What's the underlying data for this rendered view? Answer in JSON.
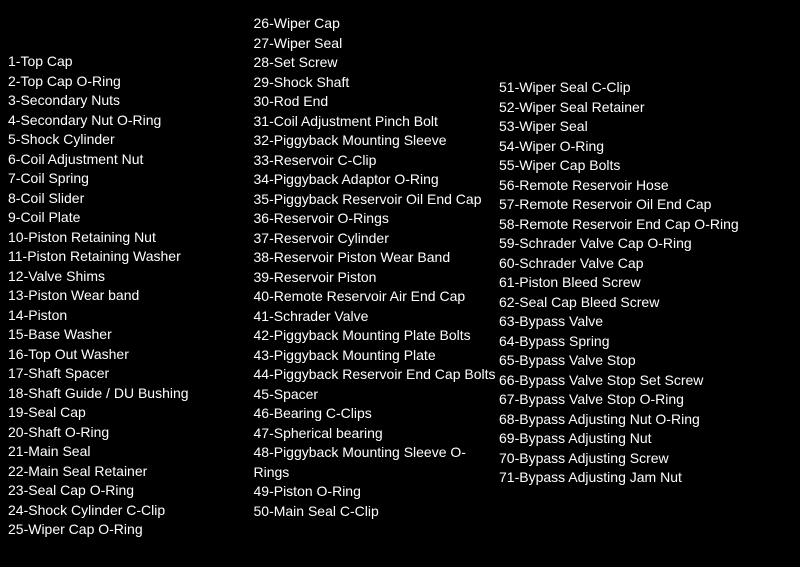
{
  "columns": {
    "col1": [
      "1-Top Cap",
      "2-Top Cap O-Ring",
      "3-Secondary Nuts",
      "4-Secondary Nut O-Ring",
      "5-Shock Cylinder",
      "6-Coil Adjustment Nut",
      "7-Coil Spring",
      "8-Coil Slider",
      "9-Coil Plate",
      "10-Piston Retaining Nut",
      "11-Piston Retaining Washer",
      "12-Valve Shims",
      "13-Piston Wear band",
      "14-Piston",
      "15-Base Washer",
      "16-Top Out Washer",
      "17-Shaft Spacer",
      "18-Shaft Guide / DU Bushing",
      "19-Seal Cap",
      "20-Shaft O-Ring",
      "21-Main Seal",
      "22-Main Seal Retainer",
      "23-Seal Cap O-Ring",
      "24-Shock Cylinder C-Clip",
      "25-Wiper Cap O-Ring"
    ],
    "col2": [
      "26-Wiper Cap",
      "27-Wiper Seal",
      "28-Set Screw",
      "29-Shock Shaft",
      "30-Rod End",
      "31-Coil Adjustment Pinch Bolt",
      "32-Piggyback Mounting Sleeve",
      "33-Reservoir C-Clip",
      "34-Piggyback Adaptor O-Ring",
      "35-Piggyback Reservoir Oil End Cap",
      "36-Reservoir O-Rings",
      "37-Reservoir Cylinder",
      "38-Reservoir Piston Wear Band",
      "39-Reservoir Piston",
      "40-Remote Reservoir Air End Cap",
      "41-Schrader Valve",
      "42-Piggyback Mounting Plate Bolts",
      "43-Piggyback Mounting Plate",
      "44-Piggyback Reservoir End Cap Bolts",
      "45-Spacer",
      "46-Bearing C-Clips",
      "47-Spherical bearing",
      "48-Piggyback Mounting Sleeve O-Rings",
      "49-Piston O-Ring",
      "50-Main Seal C-Clip"
    ],
    "col3": [
      "51-Wiper Seal C-Clip",
      "52-Wiper Seal Retainer",
      "53-Wiper Seal",
      "54-Wiper O-Ring",
      "55-Wiper Cap Bolts",
      "56-Remote Reservoir Hose",
      "57-Remote Reservoir Oil End Cap",
      "58-Remote Reservoir End Cap O-Ring",
      "59-Schrader Valve Cap O-Ring",
      "60-Schrader Valve Cap",
      "61-Piston Bleed Screw",
      "62-Seal Cap Bleed Screw",
      "63-Bypass Valve",
      "64-Bypass Spring",
      "65-Bypass Valve Stop",
      "66-Bypass Valve Stop Set Screw",
      "67-Bypass Valve Stop O-Ring",
      "68-Bypass Adjusting Nut O-Ring",
      "69-Bypass Adjusting Nut",
      "70-Bypass Adjusting Screw",
      "71-Bypass Adjusting Jam Nut"
    ]
  }
}
